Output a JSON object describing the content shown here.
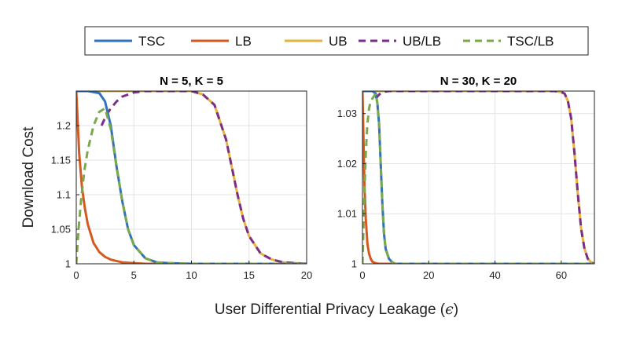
{
  "colors": {
    "TSC": "#2f72bd",
    "LB": "#d4591e",
    "UB": "#e6b33a",
    "UB/LB": "#7a2e8c",
    "TSC/LB": "#7aa84a"
  },
  "figure": {
    "xlabel": "User Differential Privacy Leakage (",
    "xlabel_symbol": "ϵ",
    "xlabel_close": ")",
    "ylabel": "Download Cost"
  },
  "legend": {
    "placement": "top",
    "entries": [
      {
        "name": "TSC",
        "style": "solid"
      },
      {
        "name": "LB",
        "style": "solid"
      },
      {
        "name": "UB",
        "style": "solid"
      },
      {
        "name": "UB/LB",
        "style": "dashed"
      },
      {
        "name": "TSC/LB",
        "style": "dashed"
      }
    ]
  },
  "chart_data": [
    {
      "type": "line",
      "title": "N = 5, K = 5",
      "xlim": [
        0,
        20
      ],
      "ylim": [
        1,
        1.25
      ],
      "xticks": [
        "0",
        "5",
        "10",
        "15",
        "20"
      ],
      "yticks": [
        "1",
        "1.05",
        "1.1",
        "1.15",
        "1.2"
      ],
      "grid": true,
      "series": [
        {
          "name": "TSC",
          "style": "solid",
          "x": [
            0,
            1,
            2,
            2.5,
            3,
            3.5,
            4,
            4.5,
            5,
            6,
            7,
            8,
            10,
            12,
            20
          ],
          "y": [
            1.25,
            1.25,
            1.247,
            1.235,
            1.2,
            1.14,
            1.09,
            1.05,
            1.027,
            1.008,
            1.002,
            1.001,
            1.0,
            1.0,
            1.0
          ]
        },
        {
          "name": "LB",
          "style": "solid",
          "x": [
            0,
            0.25,
            0.5,
            0.75,
            1,
            1.5,
            2,
            2.5,
            3,
            4,
            5,
            6,
            8,
            10,
            20
          ],
          "y": [
            1.25,
            1.16,
            1.11,
            1.08,
            1.057,
            1.03,
            1.017,
            1.01,
            1.006,
            1.002,
            1.001,
            1.0,
            1.0,
            1.0,
            1.0
          ]
        },
        {
          "name": "UB",
          "style": "solid",
          "x": [
            0,
            5,
            10,
            11,
            12,
            13,
            13.5,
            14,
            14.5,
            15,
            16,
            17,
            18,
            19,
            20
          ],
          "y": [
            1.25,
            1.25,
            1.25,
            1.245,
            1.23,
            1.18,
            1.14,
            1.1,
            1.065,
            1.04,
            1.015,
            1.006,
            1.002,
            1.001,
            1.0
          ]
        },
        {
          "name": "UB/LB",
          "style": "dashed",
          "x": [
            2.2,
            2.6,
            3,
            3.5,
            4,
            5,
            6,
            7,
            8,
            10,
            11,
            12,
            13,
            13.5,
            14,
            14.5,
            15,
            16,
            17,
            18,
            19,
            20
          ],
          "y": [
            1.2,
            1.215,
            1.225,
            1.235,
            1.242,
            1.248,
            1.25,
            1.25,
            1.25,
            1.25,
            1.245,
            1.23,
            1.18,
            1.14,
            1.1,
            1.065,
            1.04,
            1.015,
            1.006,
            1.002,
            1.001,
            1.0
          ]
        },
        {
          "name": "TSC/LB",
          "style": "dashed",
          "x": [
            0,
            0.2,
            0.4,
            0.7,
            1,
            1.5,
            2,
            2.5,
            3,
            3.5,
            4,
            4.5,
            5,
            6,
            7,
            8,
            10,
            12,
            20
          ],
          "y": [
            1.0,
            1.05,
            1.09,
            1.135,
            1.165,
            1.2,
            1.22,
            1.225,
            1.195,
            1.14,
            1.09,
            1.05,
            1.027,
            1.008,
            1.002,
            1.001,
            1.0,
            1.0,
            1.0
          ]
        }
      ]
    },
    {
      "type": "line",
      "title": "N = 30, K = 20",
      "xlim": [
        0,
        70
      ],
      "ylim": [
        1,
        1.0345
      ],
      "xticks": [
        "0",
        "20",
        "40",
        "60"
      ],
      "xtick_values": [
        0,
        20,
        40,
        60
      ],
      "yticks": [
        "1",
        "1.01",
        "1.02",
        "1.03"
      ],
      "grid": true,
      "series": [
        {
          "name": "TSC",
          "style": "solid",
          "x": [
            0,
            3,
            4,
            4.5,
            5,
            5.5,
            6,
            6.5,
            7,
            8,
            9,
            10,
            70
          ],
          "y": [
            1.0345,
            1.0345,
            1.034,
            1.032,
            1.028,
            1.02,
            1.012,
            1.006,
            1.003,
            1.001,
            1.0003,
            1.0,
            1.0
          ]
        },
        {
          "name": "LB",
          "style": "solid",
          "x": [
            0,
            0.3,
            0.6,
            1,
            1.5,
            2,
            2.5,
            3,
            4,
            5,
            6,
            70
          ],
          "y": [
            1.0345,
            1.025,
            1.016,
            1.009,
            1.004,
            1.002,
            1.001,
            1.0004,
            1.0001,
            1.0,
            1.0,
            1.0
          ]
        },
        {
          "name": "UB",
          "style": "solid",
          "x": [
            0,
            58,
            60,
            61,
            62,
            63,
            64,
            65,
            66,
            67,
            68,
            69,
            70
          ],
          "y": [
            1.0345,
            1.0345,
            1.0343,
            1.034,
            1.0325,
            1.029,
            1.022,
            1.014,
            1.007,
            1.003,
            1.001,
            1.0003,
            1.0
          ]
        },
        {
          "name": "UB/LB",
          "style": "dashed",
          "x": [
            4,
            5,
            6,
            8,
            10,
            20,
            40,
            58,
            60,
            61,
            62,
            63,
            64,
            65,
            66,
            67,
            68,
            69,
            70
          ],
          "y": [
            1.033,
            1.0338,
            1.0343,
            1.0345,
            1.0345,
            1.0345,
            1.0345,
            1.0345,
            1.0343,
            1.034,
            1.0325,
            1.029,
            1.022,
            1.014,
            1.007,
            1.003,
            1.001,
            1.0003,
            1.0
          ]
        },
        {
          "name": "TSC/LB",
          "style": "dashed",
          "x": [
            0,
            0.5,
            1,
            1.5,
            2,
            2.5,
            3,
            4,
            4.5,
            5,
            5.5,
            6,
            6.5,
            7,
            8,
            9,
            10,
            70
          ],
          "y": [
            1.0,
            1.012,
            1.022,
            1.028,
            1.031,
            1.0325,
            1.033,
            1.034,
            1.032,
            1.028,
            1.02,
            1.012,
            1.006,
            1.003,
            1.001,
            1.0003,
            1.0,
            1.0
          ]
        }
      ]
    }
  ]
}
